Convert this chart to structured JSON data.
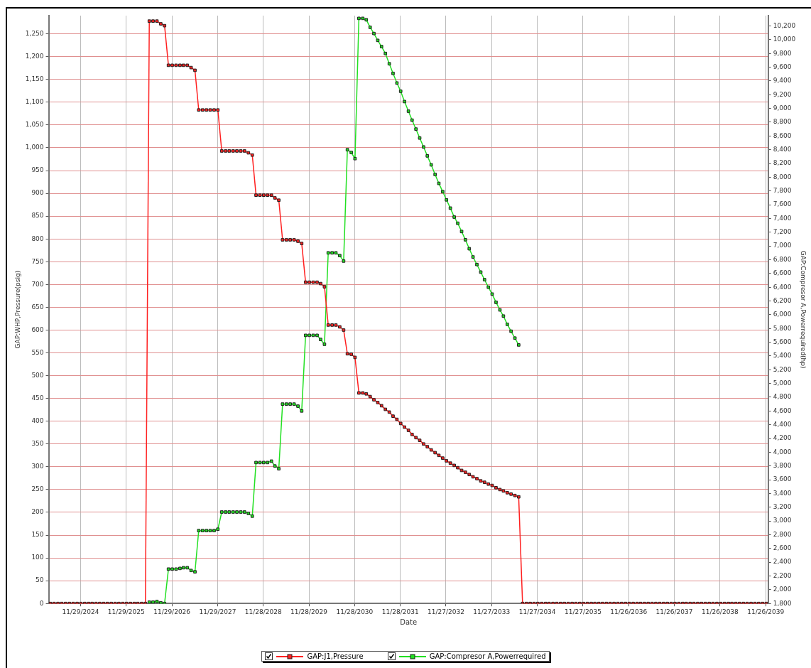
{
  "chart_data": {
    "type": "line",
    "xlabel": "Date",
    "ylabel": "GAP:WHP,Pressure(psig)",
    "y2label": "GAP:Compresor A,Powerrequired(hp)",
    "x": [
      "2024-04",
      "2024-05",
      "2024-06",
      "2024-07",
      "2024-08",
      "2024-09",
      "2024-10",
      "2024-11",
      "2024-12",
      "2025-01",
      "2025-02",
      "2025-03",
      "2025-04",
      "2025-05",
      "2025-06",
      "2025-07",
      "2025-08",
      "2025-09",
      "2025-10",
      "2025-11",
      "2025-12",
      "2026-01",
      "2026-02",
      "2026-03",
      "2026-04",
      "2026-05",
      "2026-06",
      "2026-07",
      "2026-08",
      "2026-09",
      "2026-10",
      "2026-11",
      "2026-12",
      "2027-01",
      "2027-02",
      "2027-03",
      "2027-04",
      "2027-05",
      "2027-06",
      "2027-07",
      "2027-08",
      "2027-09",
      "2027-10",
      "2027-11",
      "2027-12",
      "2028-01",
      "2028-02",
      "2028-03",
      "2028-04",
      "2028-05",
      "2028-06",
      "2028-07",
      "2028-08",
      "2028-09",
      "2028-10",
      "2028-11",
      "2028-12",
      "2029-01",
      "2029-02",
      "2029-03",
      "2029-04",
      "2029-05",
      "2029-06",
      "2029-07",
      "2029-08",
      "2029-09",
      "2029-10",
      "2029-11",
      "2029-12",
      "2030-01",
      "2030-02",
      "2030-03",
      "2030-04",
      "2030-05",
      "2030-06",
      "2030-07",
      "2030-08",
      "2030-09",
      "2030-10",
      "2030-11",
      "2030-12",
      "2031-01",
      "2031-02",
      "2031-03",
      "2031-04",
      "2031-05",
      "2031-06",
      "2031-07",
      "2031-08",
      "2031-09",
      "2031-10",
      "2031-11",
      "2031-12",
      "2032-01",
      "2032-02",
      "2032-03",
      "2032-04",
      "2032-05",
      "2032-06",
      "2032-07",
      "2032-08",
      "2032-09",
      "2032-10",
      "2032-11",
      "2032-12",
      "2033-01",
      "2033-02",
      "2033-03",
      "2033-04",
      "2033-05",
      "2033-06",
      "2033-07",
      "2033-08",
      "2033-09",
      "2033-10",
      "2033-11",
      "2033-12",
      "2034-01",
      "2034-02",
      "2034-03",
      "2034-04",
      "2034-05",
      "2034-06",
      "2034-07",
      "2034-08",
      "2034-09",
      "2034-10",
      "2034-11",
      "2034-12",
      "2035-01",
      "2035-02",
      "2035-03",
      "2035-04",
      "2035-05",
      "2035-06",
      "2035-07",
      "2035-08",
      "2035-09",
      "2035-10",
      "2035-11",
      "2035-12",
      "2036-01",
      "2036-02",
      "2036-03",
      "2036-04",
      "2036-05",
      "2036-06",
      "2036-07",
      "2036-08",
      "2036-09",
      "2036-10",
      "2036-11",
      "2036-12",
      "2037-01",
      "2037-02",
      "2037-03",
      "2037-04",
      "2037-05",
      "2037-06",
      "2037-07",
      "2037-08",
      "2037-09",
      "2037-10",
      "2037-11",
      "2037-12",
      "2038-01",
      "2038-02",
      "2038-03",
      "2038-04",
      "2038-05",
      "2038-06",
      "2038-07",
      "2038-08",
      "2038-09",
      "2038-10",
      "2038-11",
      "2038-12",
      "2039-01",
      "2039-02",
      "2039-03",
      "2039-04",
      "2039-05",
      "2039-06",
      "2039-07",
      "2039-08",
      "2039-09",
      "2039-10",
      "2039-11",
      "2039-12"
    ],
    "xlim": [
      "2024-03-19",
      "2039-12-16"
    ],
    "xticks": [
      {
        "value": "2024-11-29",
        "label": "11/29/2024"
      },
      {
        "value": "2025-11-29",
        "label": "11/29/2025"
      },
      {
        "value": "2026-11-29",
        "label": "11/29/2026"
      },
      {
        "value": "2027-11-29",
        "label": "11/29/2027"
      },
      {
        "value": "2028-11-28",
        "label": "11/28/2028"
      },
      {
        "value": "2029-11-28",
        "label": "11/28/2029"
      },
      {
        "value": "2030-11-28",
        "label": "11/28/2030"
      },
      {
        "value": "2031-11-28",
        "label": "11/28/2031"
      },
      {
        "value": "2032-11-27",
        "label": "11/27/2032"
      },
      {
        "value": "2033-11-27",
        "label": "11/27/2033"
      },
      {
        "value": "2034-11-27",
        "label": "11/27/2034"
      },
      {
        "value": "2035-11-27",
        "label": "11/27/2035"
      },
      {
        "value": "2036-11-26",
        "label": "11/26/2036"
      },
      {
        "value": "2037-11-26",
        "label": "11/26/2037"
      },
      {
        "value": "2038-11-26",
        "label": "11/26/2038"
      },
      {
        "value": "2039-11-26",
        "label": "11/26/2039"
      }
    ],
    "ylim": [
      0,
      1290
    ],
    "yticks": [
      0,
      50,
      100,
      150,
      200,
      250,
      300,
      350,
      400,
      450,
      500,
      550,
      600,
      650,
      700,
      750,
      800,
      850,
      900,
      950,
      {
        "value": 1000,
        "label": "1,000"
      },
      {
        "value": 1050,
        "label": "1,050"
      },
      {
        "value": 1100,
        "label": "1,100"
      },
      {
        "value": 1150,
        "label": "1,150"
      },
      {
        "value": 1200,
        "label": "1,200"
      },
      {
        "value": 1250,
        "label": "1,250"
      }
    ],
    "y2lim": [
      1800,
      10350
    ],
    "y2ticks": [
      {
        "value": 1800,
        "label": "1,800"
      },
      {
        "value": 2000,
        "label": "2,000"
      },
      {
        "value": 2200,
        "label": "2,200"
      },
      {
        "value": 2400,
        "label": "2,400"
      },
      {
        "value": 2600,
        "label": "2,600"
      },
      {
        "value": 2800,
        "label": "2,800"
      },
      {
        "value": 3000,
        "label": "3,000"
      },
      {
        "value": 3200,
        "label": "3,200"
      },
      {
        "value": 3400,
        "label": "3,400"
      },
      {
        "value": 3600,
        "label": "3,600"
      },
      {
        "value": 3800,
        "label": "3,800"
      },
      {
        "value": 4000,
        "label": "4,000"
      },
      {
        "value": 4200,
        "label": "4,200"
      },
      {
        "value": 4400,
        "label": "4,400"
      },
      {
        "value": 4600,
        "label": "4,600"
      },
      {
        "value": 4800,
        "label": "4,800"
      },
      {
        "value": 5000,
        "label": "5,000"
      },
      {
        "value": 5200,
        "label": "5,200"
      },
      {
        "value": 5400,
        "label": "5,400"
      },
      {
        "value": 5600,
        "label": "5,600"
      },
      {
        "value": 5800,
        "label": "5,800"
      },
      {
        "value": 6000,
        "label": "6,000"
      },
      {
        "value": 6200,
        "label": "6,200"
      },
      {
        "value": 6400,
        "label": "6,400"
      },
      {
        "value": 6600,
        "label": "6,600"
      },
      {
        "value": 6800,
        "label": "6,800"
      },
      {
        "value": 7000,
        "label": "7,000"
      },
      {
        "value": 7200,
        "label": "7,200"
      },
      {
        "value": 7400,
        "label": "7,400"
      },
      {
        "value": 7600,
        "label": "7,600"
      },
      {
        "value": 7800,
        "label": "7,800"
      },
      {
        "value": 8000,
        "label": "8,000"
      },
      {
        "value": 8200,
        "label": "8,200"
      },
      {
        "value": 8400,
        "label": "8,400"
      },
      {
        "value": 8600,
        "label": "8,600"
      },
      {
        "value": 8800,
        "label": "8,800"
      },
      {
        "value": 9000,
        "label": "9,000"
      },
      {
        "value": 9200,
        "label": "9,200"
      },
      {
        "value": 9400,
        "label": "9,400"
      },
      {
        "value": 9600,
        "label": "9,600"
      },
      {
        "value": 9800,
        "label": "9,800"
      },
      {
        "value": 10000,
        "label": "10,000"
      },
      {
        "value": 10200,
        "label": "10,200"
      }
    ],
    "grid": true,
    "legend": "bottom",
    "marker": "square",
    "line_style": "solid",
    "series": [
      {
        "name": "GAP:J1,Pressure",
        "color": "#ff2020",
        "values": [
          0,
          0,
          0,
          0,
          0,
          0,
          0,
          0,
          0,
          0,
          0,
          0,
          0,
          0,
          0,
          0,
          0,
          0,
          0,
          0,
          0,
          0,
          0,
          0,
          0,
          0,
          1278,
          1278,
          1278,
          1272,
          1268,
          1181,
          1181,
          1181,
          1181,
          1181,
          1181,
          1176,
          1170,
          1083,
          1083,
          1083,
          1083,
          1083,
          1083,
          993,
          993,
          993,
          993,
          993,
          993,
          993,
          989,
          984,
          896,
          896,
          896,
          896,
          896,
          890,
          885,
          798,
          798,
          798,
          798,
          795,
          790,
          705,
          705,
          705,
          705,
          702,
          695,
          611,
          611,
          611,
          607,
          600,
          548,
          547,
          540,
          462,
          462,
          460,
          454,
          447,
          441,
          434,
          426,
          420,
          411,
          404,
          395,
          387,
          380,
          371,
          364,
          358,
          350,
          344,
          337,
          331,
          325,
          319,
          313,
          308,
          303,
          298,
          292,
          288,
          283,
          278,
          274,
          269,
          266,
          262,
          259,
          254,
          250,
          247,
          243,
          240,
          237,
          234,
          0,
          0,
          0,
          0,
          0,
          0,
          0,
          0,
          0,
          0,
          0,
          0,
          0,
          0,
          0,
          0,
          0,
          0,
          0,
          0,
          0,
          0,
          0,
          0,
          0,
          0,
          0,
          0,
          0,
          0,
          0,
          0,
          0,
          0,
          0,
          0,
          0,
          0,
          0,
          0,
          0,
          0,
          0,
          0,
          0,
          0,
          0,
          0,
          0,
          0,
          0,
          0,
          0,
          0,
          0,
          0,
          0,
          0,
          0,
          0,
          0,
          0,
          0,
          0,
          0
        ]
      },
      {
        "name": "GAP:Compresor A,Powerrequired",
        "color": "#22e022",
        "axis": "y2",
        "x": [
          "2026-06",
          "2026-07",
          "2026-08",
          "2026-09",
          "2026-10",
          "2026-11",
          "2026-12",
          "2027-01",
          "2027-02",
          "2027-03",
          "2027-04",
          "2027-05",
          "2027-06",
          "2027-07",
          "2027-08",
          "2027-09",
          "2027-10",
          "2027-11",
          "2027-12",
          "2028-01",
          "2028-02",
          "2028-03",
          "2028-04",
          "2028-05",
          "2028-06",
          "2028-07",
          "2028-08",
          "2028-09",
          "2028-10",
          "2028-11",
          "2028-12",
          "2029-01",
          "2029-02",
          "2029-03",
          "2029-04",
          "2029-05",
          "2029-06",
          "2029-07",
          "2029-08",
          "2029-09",
          "2029-10",
          "2029-11",
          "2029-12",
          "2030-01",
          "2030-02",
          "2030-03",
          "2030-04",
          "2030-05",
          "2030-06",
          "2030-07",
          "2030-08",
          "2030-09",
          "2030-10",
          "2030-11",
          "2030-12",
          "2031-01",
          "2031-02",
          "2031-03",
          "2031-04",
          "2031-05",
          "2031-06",
          "2031-07",
          "2031-08",
          "2031-09",
          "2031-10",
          "2031-11",
          "2031-12",
          "2032-01",
          "2032-02",
          "2032-03",
          "2032-04",
          "2032-05",
          "2032-06",
          "2032-07",
          "2032-08",
          "2032-09",
          "2032-10",
          "2032-11",
          "2032-12",
          "2033-01",
          "2033-02",
          "2033-03",
          "2033-04",
          "2033-05",
          "2033-06",
          "2033-07",
          "2033-08",
          "2033-09",
          "2033-10",
          "2033-11",
          "2033-12",
          "2034-01",
          "2034-02",
          "2034-03",
          "2034-04",
          "2034-05",
          "2034-06",
          "2034-07"
        ],
        "values": [
          1820,
          1820,
          1830,
          1810,
          1800,
          2300,
          2300,
          2300,
          2310,
          2320,
          2320,
          2280,
          2260,
          2860,
          2860,
          2860,
          2860,
          2860,
          2880,
          3130,
          3130,
          3130,
          3130,
          3130,
          3130,
          3130,
          3110,
          3070,
          3850,
          3850,
          3850,
          3850,
          3870,
          3800,
          3760,
          4700,
          4700,
          4700,
          4700,
          4670,
          4600,
          5700,
          5700,
          5700,
          5700,
          5640,
          5570,
          6900,
          6900,
          6900,
          6860,
          6780,
          8400,
          8360,
          8270,
          10310,
          10310,
          10290,
          10180,
          10090,
          9990,
          9900,
          9800,
          9650,
          9510,
          9370,
          9250,
          9100,
          8960,
          8830,
          8700,
          8570,
          8440,
          8310,
          8180,
          8040,
          7910,
          7790,
          7670,
          7550,
          7420,
          7330,
          7210,
          7090,
          6960,
          6840,
          6730,
          6620,
          6510,
          6400,
          6300,
          6180,
          6070,
          5980,
          5860,
          5760,
          5660,
          5560
        ]
      }
    ]
  }
}
